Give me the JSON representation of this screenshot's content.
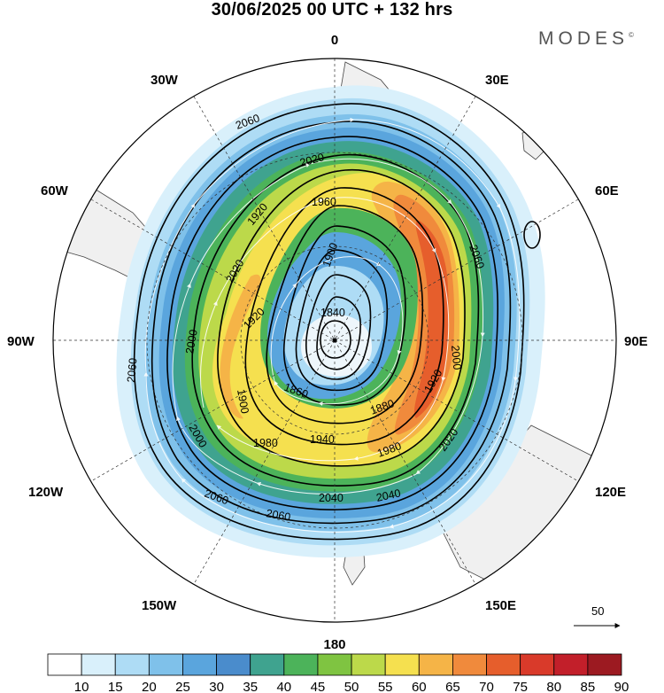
{
  "title": "30/06/2025  00 UTC  + 132 hrs",
  "brand": "MODES",
  "brand_mark": "©",
  "longitude_labels": {
    "lon0": "0",
    "lon30e": "30E",
    "lon60e": "60E",
    "lon90e": "90E",
    "lon120e": "120E",
    "lon150e": "150E",
    "lon180": "180",
    "lon150w": "150W",
    "lon120w": "120W",
    "lon90w": "90W",
    "lon60w": "60W",
    "lon30w": "30W"
  },
  "contour_labels": [
    "2060",
    "2020",
    "1960",
    "1920",
    "2020",
    "1920",
    "1900",
    "1840",
    "1860",
    "1900",
    "2000",
    "2000",
    "2060",
    "1980",
    "1940",
    "1980",
    "1880",
    "1920",
    "2000",
    "2020",
    "2060",
    "2060",
    "2060",
    "2040",
    "2040"
  ],
  "reference_vector": {
    "value": "50",
    "arrow": "→"
  },
  "colorbar": {
    "colors": [
      "#ffffff",
      "#d9f0fb",
      "#aedcf5",
      "#7fc1ea",
      "#5aa5dd",
      "#4a8ccc",
      "#3fa38f",
      "#4cb35a",
      "#7fc441",
      "#bcd94a",
      "#f5e04f",
      "#f5b447",
      "#f08a3c",
      "#e65e2c",
      "#d93a2a",
      "#c21f2a",
      "#9c1a21"
    ],
    "ticks": [
      "10",
      "15",
      "20",
      "25",
      "30",
      "35",
      "40",
      "45",
      "50",
      "55",
      "60",
      "65",
      "70",
      "75",
      "80",
      "85",
      "90"
    ]
  }
}
